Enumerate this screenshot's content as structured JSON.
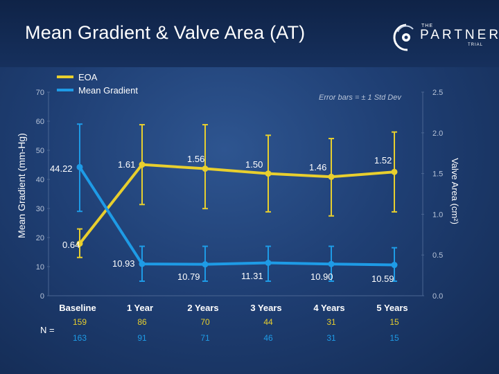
{
  "header": {
    "title": "Mean Gradient & Valve Area (AT)",
    "logo_the": "THE",
    "logo_partner": "PARTNER",
    "logo_trial": "TRIAL"
  },
  "colors": {
    "eoa": "#e8cf2e",
    "gradient": "#1e9be6",
    "axis_text": "#b8c4d8",
    "gridline": "#4a6592"
  },
  "chart_data": {
    "type": "line",
    "title": "Mean Gradient & Valve Area (AT)",
    "categories": [
      "Baseline",
      "1 Year",
      "2 Years",
      "3 Years",
      "4 Years",
      "5 Years"
    ],
    "ylabel_left": "Mean Gradient (mm-Hg)",
    "ylabel_right": "Valve Area (cm²)",
    "ylim_left": [
      0,
      70
    ],
    "ylim_right": [
      0,
      2.5
    ],
    "yticks_left": [
      "0",
      "10",
      "20",
      "30",
      "40",
      "50",
      "60",
      "70"
    ],
    "yticks_right": [
      "0.0",
      "0.5",
      "1.0",
      "1.5",
      "2.0",
      "2.5"
    ],
    "error_note": "Error bars = ± 1 Std Dev",
    "legend": [
      "EOA",
      "Mean Gradient"
    ],
    "series": [
      {
        "name": "EOA",
        "axis": "right",
        "values": [
          0.64,
          1.61,
          1.56,
          1.5,
          1.46,
          1.52
        ],
        "labels": [
          "0.64",
          "1.61",
          "1.56",
          "1.50",
          "1.46",
          "1.52"
        ],
        "err_low": [
          0.47,
          1.12,
          1.07,
          1.03,
          0.98,
          1.03
        ],
        "err_high": [
          0.82,
          2.1,
          2.1,
          1.97,
          1.93,
          2.01
        ]
      },
      {
        "name": "Mean Gradient",
        "axis": "left",
        "values": [
          44.22,
          10.93,
          10.79,
          11.31,
          10.9,
          10.59
        ],
        "labels": [
          "44.22",
          "10.93",
          "10.79",
          "11.31",
          "10.90",
          "10.59"
        ],
        "err_low": [
          29,
          5,
          5,
          5,
          5,
          5
        ],
        "err_high": [
          59,
          17,
          17,
          17,
          17,
          16.5
        ]
      }
    ],
    "n_label": "N =",
    "n_rows": [
      [
        "159",
        "86",
        "70",
        "44",
        "31",
        "15"
      ],
      [
        "163",
        "91",
        "71",
        "46",
        "31",
        "15"
      ]
    ]
  }
}
